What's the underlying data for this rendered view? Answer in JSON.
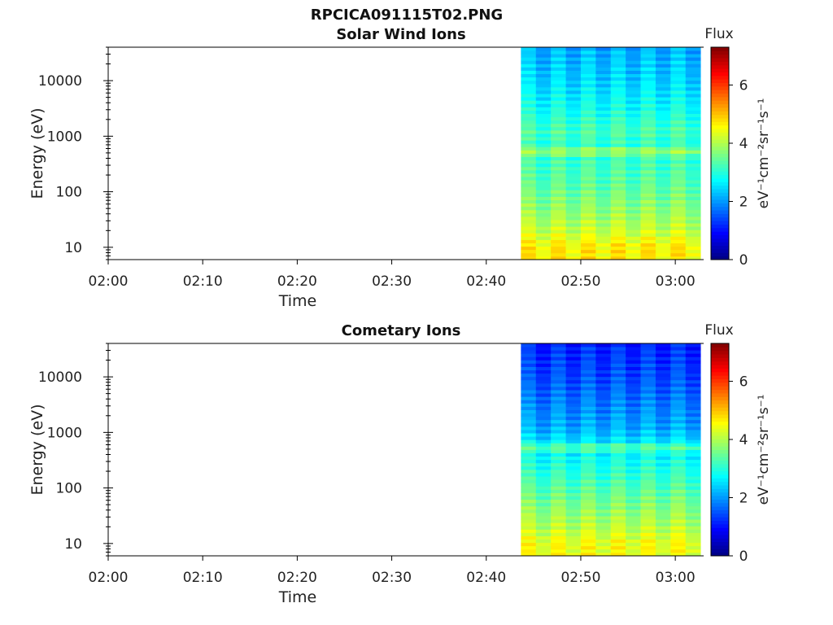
{
  "figure_title": "RPCICA091115T02.PNG",
  "colorscale": [
    "#00007f",
    "#0000ff",
    "#007fff",
    "#00ffff",
    "#7fff7f",
    "#ffff00",
    "#ff7f00",
    "#ff0000",
    "#7f0000"
  ],
  "chart_data": [
    {
      "type": "heatmap",
      "title": "Solar Wind Ions",
      "xlabel": "Time",
      "ylabel": "Energy (eV)",
      "y_scale": "log",
      "ylim": [
        6,
        40000
      ],
      "xlim": [
        "02:00",
        "03:03"
      ],
      "x_ticks": [
        "02:00",
        "02:10",
        "02:20",
        "02:30",
        "02:40",
        "02:50",
        "03:00"
      ],
      "y_ticks": [
        "10",
        "100",
        "1000",
        "10000"
      ],
      "data_start": "02:43:40",
      "data_end": "03:02:40",
      "time_bins": 12,
      "colorbar": {
        "label": "Flux",
        "unit": "eV⁻¹cm⁻²sr⁻¹s⁻¹",
        "range": [
          0,
          7.3
        ],
        "ticks": [
          "0",
          "2",
          "4",
          "6"
        ]
      },
      "flux_profile": [
        {
          "energy": 10,
          "flux": 4.6
        },
        {
          "energy": 20,
          "flux": 4.1
        },
        {
          "energy": 50,
          "flux": 3.7
        },
        {
          "energy": 150,
          "flux": 3.3
        },
        {
          "energy": 400,
          "flux": 3.1
        },
        {
          "energy": 550,
          "flux": 3.9
        },
        {
          "energy": 700,
          "flux": 3.0
        },
        {
          "energy": 1200,
          "flux": 3.2
        },
        {
          "energy": 3000,
          "flux": 2.8
        },
        {
          "energy": 10000,
          "flux": 2.4
        },
        {
          "energy": 40000,
          "flux": 2.1
        }
      ]
    },
    {
      "type": "heatmap",
      "title": "Cometary Ions",
      "xlabel": "Time",
      "ylabel": "Energy (eV)",
      "y_scale": "log",
      "ylim": [
        6,
        40000
      ],
      "xlim": [
        "02:00",
        "03:03"
      ],
      "x_ticks": [
        "02:00",
        "02:10",
        "02:20",
        "02:30",
        "02:40",
        "02:50",
        "03:00"
      ],
      "y_ticks": [
        "10",
        "100",
        "1000",
        "10000"
      ],
      "data_start": "02:43:40",
      "data_end": "03:02:40",
      "time_bins": 12,
      "colorbar": {
        "label": "Flux",
        "unit": "eV⁻¹cm⁻²sr⁻¹s⁻¹",
        "range": [
          0,
          7.3
        ],
        "ticks": [
          "0",
          "2",
          "4",
          "6"
        ]
      },
      "flux_profile": [
        {
          "energy": 10,
          "flux": 4.4
        },
        {
          "energy": 20,
          "flux": 4.0
        },
        {
          "energy": 50,
          "flux": 3.6
        },
        {
          "energy": 150,
          "flux": 3.1
        },
        {
          "energy": 400,
          "flux": 2.7
        },
        {
          "energy": 550,
          "flux": 3.4
        },
        {
          "energy": 700,
          "flux": 2.5
        },
        {
          "energy": 1200,
          "flux": 2.1
        },
        {
          "energy": 3000,
          "flux": 1.8
        },
        {
          "energy": 10000,
          "flux": 1.4
        },
        {
          "energy": 40000,
          "flux": 1.1
        }
      ]
    }
  ]
}
